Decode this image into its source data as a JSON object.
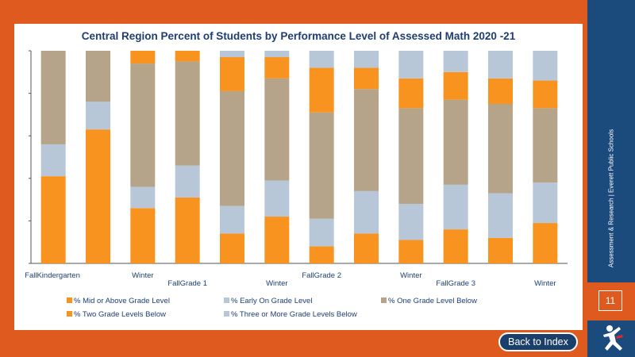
{
  "page": {
    "number": "11",
    "sidebar_text": "Assessment & Research | Everett Public Schools",
    "back_button": "Back to Index"
  },
  "colors": {
    "page_accent": "#df5a1e",
    "sidebar": "#1b4a7d",
    "title": "#1f3d74"
  },
  "chart_data": {
    "type": "bar",
    "stacked": true,
    "percent_stacked": true,
    "title": "Central Region Percent of Students by Performance Level of Assessed Math 2020 -21",
    "xlabel": "",
    "ylabel": "",
    "ylim": [
      0,
      100
    ],
    "x_tick_labels": [
      "FallKindergarten",
      "Winter",
      "FallGrade 1",
      "Winter",
      "FallGrade 2",
      "Winter",
      "FallGrade 3",
      "Winter"
    ],
    "categories": [
      "FallKindergarten",
      "Winter",
      "FallGrade 1",
      "Winter",
      "FallGrade 2",
      "Winter",
      "FallGrade 3",
      "Winter",
      "",
      "",
      "",
      ""
    ],
    "series": [
      {
        "name": "% Mid or Above Grade Level",
        "color": "#f7931e",
        "values": [
          41,
          63,
          26,
          31,
          14,
          22,
          8,
          14,
          11,
          16,
          12,
          19
        ]
      },
      {
        "name": "% Early On Grade Level",
        "color": "#b8c7d8",
        "values": [
          15,
          13,
          10,
          15,
          13,
          17,
          13,
          20,
          17,
          21,
          21,
          19
        ]
      },
      {
        "name": "% One Grade Level Below",
        "color": "#b5a38a",
        "values": [
          44,
          24,
          58,
          49,
          54,
          48,
          50,
          48,
          45,
          40,
          42,
          35
        ]
      },
      {
        "name": "% Two Grade Levels Below",
        "color": "#f7931e",
        "values": [
          0,
          0,
          6,
          5,
          16,
          10,
          21,
          10,
          14,
          13,
          12,
          13
        ]
      },
      {
        "name": "% Three or More Grade Levels Below",
        "color": "#b8c7d8",
        "values": [
          0,
          0,
          0,
          0,
          3,
          3,
          8,
          8,
          13,
          10,
          13,
          14
        ]
      }
    ],
    "legend_position": "bottom",
    "grid": false
  }
}
